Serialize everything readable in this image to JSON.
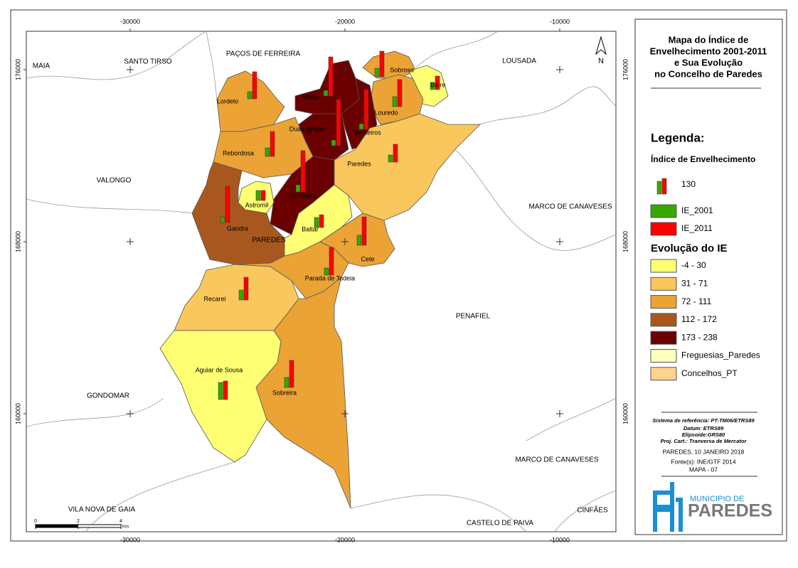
{
  "map": {
    "title_lines": [
      "Mapa do Índice de",
      "Envelhecimento 2001-2011",
      "e Sua Evolução",
      "no Concelho de Paredes"
    ],
    "x_grid": [
      -30000,
      -20000,
      -10000
    ],
    "y_grid": [
      176000,
      168000,
      160000
    ],
    "north": "N",
    "places": [
      "MAIA",
      "SANTO TIRSO",
      "PAÇOS DE FERREIRA",
      "LOUSADA",
      "VALONGO",
      "MARCO DE CANAVESES",
      "PAREDES",
      "PENAFIEL",
      "GONDOMAR",
      "MARCO DE CANAVESES",
      "VILA NOVA DE GAIA",
      "CASTELO DE PAIVA",
      "CINFÃES"
    ],
    "parishes": [
      {
        "name": "Sobrosa",
        "ie_2001": 71,
        "ie_2011": 213
      },
      {
        "name": "Beire",
        "ie_2001": 59,
        "ie_2011": 112
      },
      {
        "name": "Vilela",
        "ie_2001": 47,
        "ie_2011": 325
      },
      {
        "name": "Lordelo",
        "ie_2001": 59,
        "ie_2011": 225
      },
      {
        "name": "Louredo",
        "ie_2001": 83,
        "ie_2011": 225
      },
      {
        "name": "Besteiros",
        "ie_2001": 47,
        "ie_2011": 331
      },
      {
        "name": "Duas Igrejas",
        "ie_2001": 47,
        "ie_2011": 384
      },
      {
        "name": "Rebordosa",
        "ie_2001": 71,
        "ie_2011": 207
      },
      {
        "name": "Paredes",
        "ie_2001": 59,
        "ie_2011": 148
      },
      {
        "name": "Vandoma",
        "ie_2001": 59,
        "ie_2011": 343
      },
      {
        "name": "Astromil",
        "ie_2001": 83,
        "ie_2011": 83
      },
      {
        "name": "Gandra",
        "ie_2001": 47,
        "ie_2011": 301
      },
      {
        "name": "Baltar",
        "ie_2001": 83,
        "ie_2011": 106
      },
      {
        "name": "Cete",
        "ie_2001": 83,
        "ie_2011": 236
      },
      {
        "name": "Parada de Todeia",
        "ie_2001": 59,
        "ie_2011": 231
      },
      {
        "name": "Recarei",
        "ie_2001": 83,
        "ie_2011": 189
      },
      {
        "name": "Aguiar de Sousa",
        "ie_2001": 142,
        "ie_2011": 154
      },
      {
        "name": "Sobreira",
        "ie_2001": 83,
        "ie_2011": 225
      }
    ],
    "scale": {
      "ticks": [
        0,
        2,
        4
      ],
      "unit": "Km"
    }
  },
  "legend": {
    "heading": "Legenda:",
    "ie_title": "Índice de Envelhecimento",
    "size_reference": 130,
    "series": [
      {
        "name": "IE_2001",
        "color": "#38a800"
      },
      {
        "name": "IE_2011",
        "color": "#ff0000"
      }
    ],
    "evolution_title": "Evolução do IE",
    "classes": [
      {
        "label": "-4 - 30",
        "color": "#ffff73"
      },
      {
        "label": "31 - 71",
        "color": "#f9c75b"
      },
      {
        "label": "72 - 111",
        "color": "#eba336"
      },
      {
        "label": "112 - 172",
        "color": "#a8581f"
      },
      {
        "label": "173 - 238",
        "color": "#6a0000"
      },
      {
        "label": "Freguesias_Paredes",
        "color": "#ffffbe"
      },
      {
        "label": "Concelhos_PT",
        "color": "#fcd38f"
      }
    ]
  },
  "info": {
    "lines": [
      "Sistema de referência: PT-TM06/ETRS89",
      "Datum: ETRS89",
      "Elipsoide:GRS80",
      "Proj. Cart.: Tranversa de Mercator",
      "PAREDES, 10 JANEIRO 2018",
      "Fonte(s): INE/GTF 2014",
      "MAPA - 07"
    ]
  },
  "logo": {
    "line1": "MUNICIPIO DE",
    "line2": "PAREDES"
  }
}
